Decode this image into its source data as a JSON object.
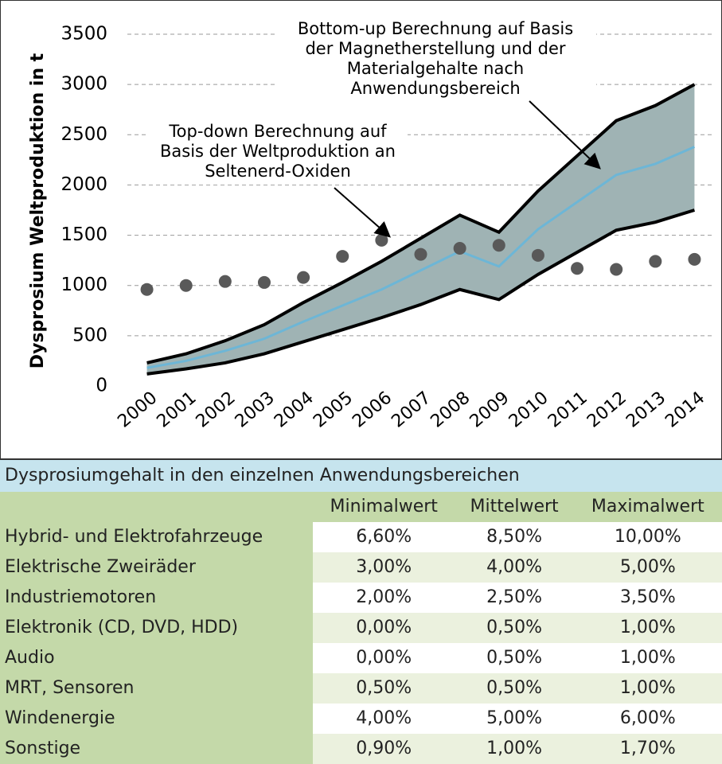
{
  "chart_data": {
    "type": "line",
    "y_label": "Dysprosium Weltproduktion in t",
    "categories": [
      "2000",
      "2001",
      "2002",
      "2003",
      "2004",
      "2005",
      "2006",
      "2007",
      "2008",
      "2009",
      "2010",
      "2011",
      "2012",
      "2013",
      "2014"
    ],
    "ylim": [
      0,
      3500
    ],
    "yticks": [
      0,
      500,
      1000,
      1500,
      2000,
      2500,
      3000,
      3500
    ],
    "grid": true,
    "band_color": "#9fb3b4",
    "series": [
      {
        "color": "#000000",
        "values": [
          230,
          320,
          450,
          610,
          830,
          1030,
          1240,
          1470,
          1700,
          1530,
          1940,
          2290,
          2640,
          2790,
          3000
        ]
      },
      {
        "color": "#6db6d6",
        "values": [
          180,
          250,
          350,
          470,
          640,
          800,
          960,
          1150,
          1340,
          1190,
          1560,
          1830,
          2100,
          2210,
          2380
        ]
      },
      {
        "color": "#000000",
        "values": [
          120,
          170,
          230,
          320,
          440,
          560,
          680,
          810,
          960,
          860,
          1110,
          1330,
          1550,
          1630,
          1750
        ]
      },
      {
        "color": "#595959",
        "type": "scatter",
        "values": [
          960,
          1000,
          1040,
          1030,
          1080,
          1290,
          1450,
          1310,
          1370,
          1400,
          1300,
          1170,
          1160,
          1240,
          1260
        ]
      }
    ],
    "annotations": [
      {
        "lines": [
          "Bottom-up Berechnung auf Basis",
          "der Magnetherstellung und der",
          "Materialgehalte nach",
          "Anwendungsbereich"
        ]
      },
      {
        "lines": [
          "Top-down Berechnung auf",
          "Basis der Weltproduktion an",
          "Seltenerd-Oxiden"
        ]
      }
    ]
  },
  "table": {
    "title": "Dysprosiumgehalt in den einzelnen Anwendungsbereichen",
    "columns": [
      "Minimalwert",
      "Mittelwert",
      "Maximalwert"
    ],
    "rows": [
      {
        "label": "Hybrid- und Elektrofahrzeuge",
        "values": [
          "6,60%",
          "8,50%",
          "10,00%"
        ]
      },
      {
        "label": "Elektrische Zweiräder",
        "values": [
          "3,00%",
          "4,00%",
          "5,00%"
        ]
      },
      {
        "label": "Industriemotoren",
        "values": [
          "2,00%",
          "2,50%",
          "3,50%"
        ]
      },
      {
        "label": "Elektronik (CD, DVD, HDD)",
        "values": [
          "0,00%",
          "0,50%",
          "1,00%"
        ]
      },
      {
        "label": "Audio",
        "values": [
          "0,00%",
          "0,50%",
          "1,00%"
        ]
      },
      {
        "label": "MRT, Sensoren",
        "values": [
          "0,50%",
          "0,50%",
          "1,00%"
        ]
      },
      {
        "label": "Windenergie",
        "values": [
          "4,00%",
          "5,00%",
          "6,00%"
        ]
      },
      {
        "label": "Sonstige",
        "values": [
          "0,90%",
          "1,00%",
          "1,70%"
        ]
      }
    ]
  }
}
